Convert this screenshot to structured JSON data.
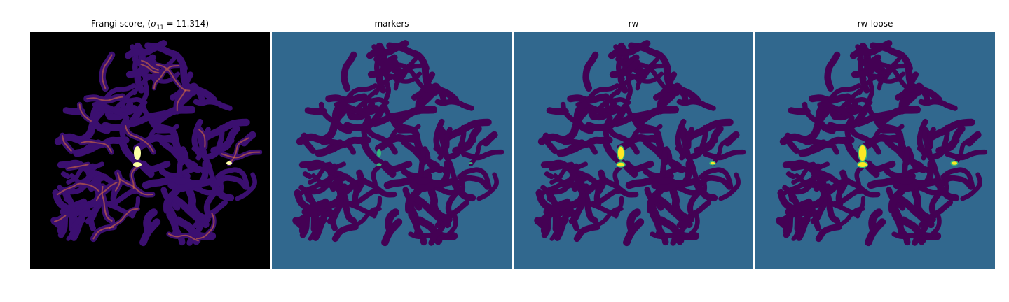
{
  "figure": {
    "panels": [
      {
        "title_prefix": "Frangi score, (",
        "title_symbol": "σ",
        "title_subscript": "11",
        "title_suffix": " = 11.314)",
        "colormap": "inferno",
        "background": "#000000",
        "blob": "#3b0f70",
        "bright": "#fcffa4",
        "hot": "#e8763a"
      },
      {
        "title": "markers",
        "colormap": "viridis",
        "background": "#31688e",
        "blob": "#440154",
        "accent": "#35b779"
      },
      {
        "title": "rw",
        "colormap": "viridis",
        "background": "#31688e",
        "blob": "#440154",
        "accent": "#fde725",
        "edge": "#35b779"
      },
      {
        "title": "rw-loose",
        "colormap": "viridis",
        "background": "#31688e",
        "blob": "#440154",
        "accent": "#fde725",
        "edge": "#35b779"
      }
    ]
  }
}
